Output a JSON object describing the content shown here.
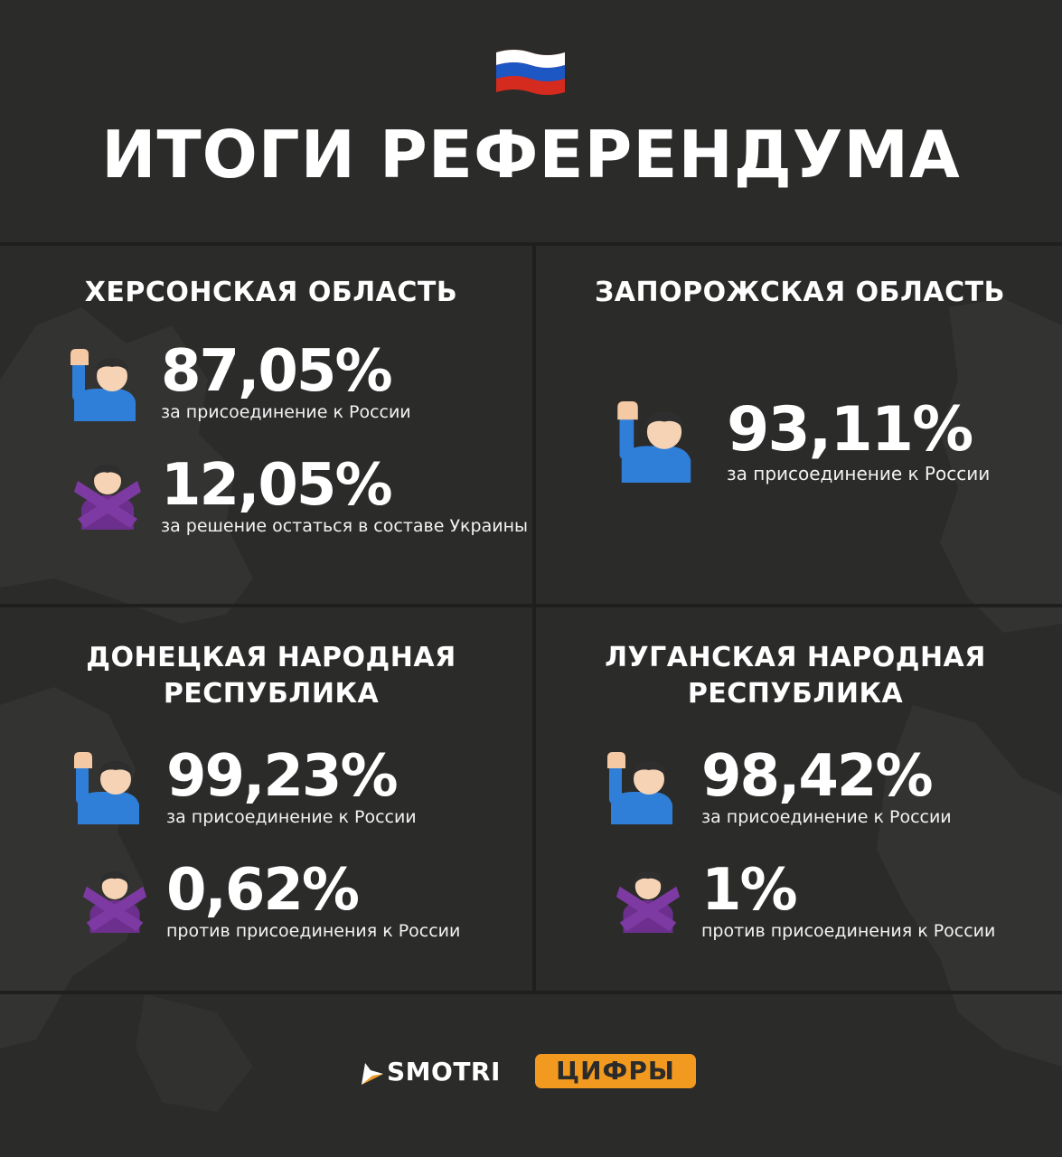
{
  "title": "ИТОГИ РЕФЕРЕНДУМА",
  "regions": [
    {
      "name": "ХЕРСОНСКАЯ ОБЛАСТЬ",
      "stats": [
        {
          "value": "87,05%",
          "caption": "за присоединение к России",
          "icon": "raised-hand-man-icon"
        },
        {
          "value": "12,05%",
          "caption": "за решение остаться в составе Украины",
          "icon": "crossed-arms-woman-icon"
        }
      ]
    },
    {
      "name": "ЗАПОРОЖСКАЯ ОБЛАСТЬ",
      "stats": [
        {
          "value": "93,11%",
          "caption": "за присоединение к России",
          "icon": "raised-hand-man-icon"
        }
      ]
    },
    {
      "name_line1": "ДОНЕЦКАЯ НАРОДНАЯ",
      "name_line2": "РЕСПУБЛИКА",
      "stats": [
        {
          "value": "99,23%",
          "caption": "за присоединение к России",
          "icon": "raised-hand-man-icon"
        },
        {
          "value": "0,62%",
          "caption": "против присоединения к России",
          "icon": "crossed-arms-woman-icon"
        }
      ]
    },
    {
      "name_line1": "ЛУГАНСКАЯ НАРОДНАЯ",
      "name_line2": "РЕСПУБЛИКА",
      "stats": [
        {
          "value": "98,42%",
          "caption": "за присоединение к России",
          "icon": "raised-hand-man-icon"
        },
        {
          "value": "1%",
          "caption": "против присоединения к России",
          "icon": "crossed-arms-woman-icon"
        }
      ]
    }
  ],
  "footer": {
    "brand": "SMOTRI",
    "badge": "ЦИФРЫ"
  },
  "colors": {
    "background": "#2b2b2a",
    "map_shape": "#3a3a39",
    "divider": "#1f1f1e",
    "accent": "#f29a1f",
    "text": "#ffffff"
  },
  "icons": [
    "russian-flag-icon",
    "raised-hand-man-icon",
    "crossed-arms-woman-icon",
    "smotri-play-icon"
  ]
}
